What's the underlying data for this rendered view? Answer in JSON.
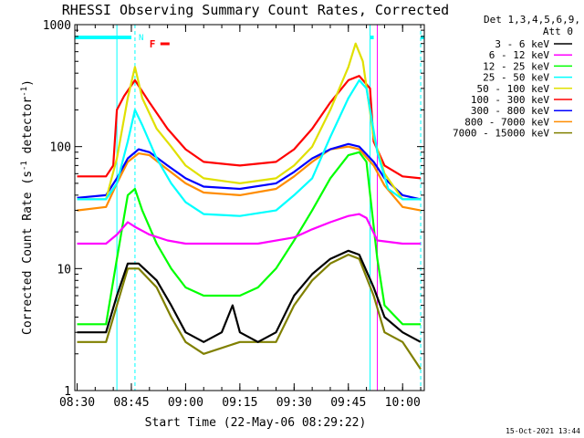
{
  "chart_data": {
    "type": "line",
    "title": "RHESSI Observing Summary Count Rates, Corrected",
    "xlabel": "Start Time (22-May-06 08:29:22)",
    "ylabel_main": "Corrected Count Rate (s",
    "ylabel_sup1": "-1",
    "ylabel_mid": " detector",
    "ylabel_sup2": "-1",
    "ylabel_end": ")",
    "yscale": "log",
    "ylim": [
      1,
      1000
    ],
    "xlim": [
      "08:29:22",
      "10:06"
    ],
    "x_ticks": [
      "08:30",
      "08:45",
      "09:00",
      "09:15",
      "09:30",
      "09:45",
      "10:00"
    ],
    "y_ticks": [
      {
        "value": 1,
        "label": "1"
      },
      {
        "value": 10,
        "label": "10"
      },
      {
        "value": 100,
        "label": "100"
      },
      {
        "value": 1000,
        "label": "1000"
      }
    ],
    "legend_title_1": "Det 1,3,4,5,6,9,",
    "legend_title_2": "Att 0",
    "timestamp": "15-Oct-2021 13:44",
    "flags": [
      {
        "label": "N",
        "color": "#00ffff",
        "start": "08:29:22",
        "end": "08:45",
        "marker": "08:45:30"
      },
      {
        "label": "F",
        "color": "#ff0000",
        "start": "08:50",
        "end": "08:50"
      }
    ],
    "vlines": [
      {
        "time": "08:41",
        "color": "#00ffff",
        "style": "solid"
      },
      {
        "time": "08:46",
        "color": "#00ffff",
        "style": "dashed"
      },
      {
        "time": "09:51",
        "color": "#00ffff",
        "style": "solid"
      },
      {
        "time": "09:53",
        "color": "#ff00ff",
        "style": "solid"
      },
      {
        "time": "10:05",
        "color": "#00ffff",
        "style": "dashed"
      }
    ],
    "series": [
      {
        "name": "3 - 6 keV",
        "color": "#000000",
        "points": [
          [
            "08:30",
            3
          ],
          [
            "08:38",
            3
          ],
          [
            "08:41",
            6
          ],
          [
            "08:44",
            11
          ],
          [
            "08:47",
            11
          ],
          [
            "08:52",
            8
          ],
          [
            "08:56",
            5
          ],
          [
            "09:00",
            3
          ],
          [
            "09:05",
            2.5
          ],
          [
            "09:10",
            3
          ],
          [
            "09:13",
            5
          ],
          [
            "09:15",
            3
          ],
          [
            "09:20",
            2.5
          ],
          [
            "09:25",
            3
          ],
          [
            "09:30",
            6
          ],
          [
            "09:35",
            9
          ],
          [
            "09:40",
            12
          ],
          [
            "09:45",
            14
          ],
          [
            "09:48",
            13
          ],
          [
            "09:52",
            7
          ],
          [
            "09:55",
            4
          ],
          [
            "10:00",
            3
          ],
          [
            "10:05",
            2.5
          ]
        ]
      },
      {
        "name": "6 - 12 keV",
        "color": "#ff00ff",
        "points": [
          [
            "08:30",
            16
          ],
          [
            "08:38",
            16
          ],
          [
            "08:41",
            19
          ],
          [
            "08:44",
            24
          ],
          [
            "08:46",
            22
          ],
          [
            "08:50",
            19
          ],
          [
            "08:55",
            17
          ],
          [
            "09:00",
            16
          ],
          [
            "09:10",
            16
          ],
          [
            "09:20",
            16
          ],
          [
            "09:30",
            18
          ],
          [
            "09:35",
            21
          ],
          [
            "09:40",
            24
          ],
          [
            "09:45",
            27
          ],
          [
            "09:48",
            28
          ],
          [
            "09:50",
            26
          ],
          [
            "09:53",
            17
          ],
          [
            "10:00",
            16
          ],
          [
            "10:05",
            16
          ]
        ]
      },
      {
        "name": "12 - 25 keV",
        "color": "#00ff00",
        "points": [
          [
            "08:30",
            3.5
          ],
          [
            "08:38",
            3.5
          ],
          [
            "08:41",
            12
          ],
          [
            "08:44",
            40
          ],
          [
            "08:46",
            45
          ],
          [
            "08:48",
            30
          ],
          [
            "08:52",
            16
          ],
          [
            "08:56",
            10
          ],
          [
            "09:00",
            7
          ],
          [
            "09:05",
            6
          ],
          [
            "09:15",
            6
          ],
          [
            "09:20",
            7
          ],
          [
            "09:25",
            10
          ],
          [
            "09:30",
            17
          ],
          [
            "09:35",
            30
          ],
          [
            "09:40",
            55
          ],
          [
            "09:45",
            85
          ],
          [
            "09:48",
            90
          ],
          [
            "09:50",
            75
          ],
          [
            "09:53",
            12
          ],
          [
            "09:55",
            5
          ],
          [
            "10:00",
            3.5
          ],
          [
            "10:05",
            3.5
          ]
        ]
      },
      {
        "name": "25 - 50 keV",
        "color": "#00ffff",
        "points": [
          [
            "08:30",
            37
          ],
          [
            "08:38",
            37
          ],
          [
            "08:41",
            50
          ],
          [
            "08:44",
            110
          ],
          [
            "08:46",
            200
          ],
          [
            "08:48",
            150
          ],
          [
            "08:52",
            80
          ],
          [
            "08:56",
            50
          ],
          [
            "09:00",
            35
          ],
          [
            "09:05",
            28
          ],
          [
            "09:15",
            27
          ],
          [
            "09:25",
            30
          ],
          [
            "09:30",
            40
          ],
          [
            "09:35",
            55
          ],
          [
            "09:40",
            120
          ],
          [
            "09:45",
            250
          ],
          [
            "09:48",
            350
          ],
          [
            "09:50",
            300
          ],
          [
            "09:53",
            90
          ],
          [
            "09:56",
            45
          ],
          [
            "10:00",
            37
          ],
          [
            "10:05",
            37
          ]
        ]
      },
      {
        "name": "50 - 100 keV",
        "color": "#e0e000",
        "points": [
          [
            "08:30",
            37
          ],
          [
            "08:38",
            37
          ],
          [
            "08:41",
            80
          ],
          [
            "08:44",
            250
          ],
          [
            "08:46",
            450
          ],
          [
            "08:48",
            250
          ],
          [
            "08:52",
            140
          ],
          [
            "08:56",
            100
          ],
          [
            "09:00",
            70
          ],
          [
            "09:05",
            55
          ],
          [
            "09:15",
            50
          ],
          [
            "09:25",
            55
          ],
          [
            "09:30",
            70
          ],
          [
            "09:35",
            100
          ],
          [
            "09:40",
            200
          ],
          [
            "09:45",
            450
          ],
          [
            "09:47",
            700
          ],
          [
            "09:49",
            500
          ],
          [
            "09:52",
            120
          ],
          [
            "09:55",
            60
          ],
          [
            "10:00",
            37
          ],
          [
            "10:05",
            37
          ]
        ]
      },
      {
        "name": "100 - 300 keV",
        "color": "#ff0000",
        "points": [
          [
            "08:30",
            57
          ],
          [
            "08:38",
            57
          ],
          [
            "08:40",
            70
          ],
          [
            "08:41",
            200
          ],
          [
            "08:43",
            260
          ],
          [
            "08:46",
            350
          ],
          [
            "08:50",
            230
          ],
          [
            "08:55",
            140
          ],
          [
            "09:00",
            95
          ],
          [
            "09:05",
            75
          ],
          [
            "09:15",
            70
          ],
          [
            "09:25",
            75
          ],
          [
            "09:30",
            95
          ],
          [
            "09:35",
            140
          ],
          [
            "09:40",
            230
          ],
          [
            "09:45",
            350
          ],
          [
            "09:48",
            380
          ],
          [
            "09:51",
            300
          ],
          [
            "09:52",
            110
          ],
          [
            "09:55",
            70
          ],
          [
            "10:00",
            57
          ],
          [
            "10:05",
            55
          ]
        ]
      },
      {
        "name": "300 - 800 keV",
        "color": "#0000ff",
        "points": [
          [
            "08:30",
            38
          ],
          [
            "08:38",
            40
          ],
          [
            "08:41",
            55
          ],
          [
            "08:44",
            80
          ],
          [
            "08:47",
            95
          ],
          [
            "08:50",
            90
          ],
          [
            "08:55",
            70
          ],
          [
            "09:00",
            55
          ],
          [
            "09:05",
            47
          ],
          [
            "09:15",
            45
          ],
          [
            "09:25",
            50
          ],
          [
            "09:30",
            62
          ],
          [
            "09:35",
            80
          ],
          [
            "09:40",
            95
          ],
          [
            "09:45",
            105
          ],
          [
            "09:48",
            100
          ],
          [
            "09:52",
            75
          ],
          [
            "09:55",
            55
          ],
          [
            "10:00",
            40
          ],
          [
            "10:05",
            37
          ]
        ]
      },
      {
        "name": "800 - 7000 keV",
        "color": "#ff8c00",
        "points": [
          [
            "08:30",
            30
          ],
          [
            "08:38",
            32
          ],
          [
            "08:41",
            50
          ],
          [
            "08:44",
            75
          ],
          [
            "08:47",
            88
          ],
          [
            "08:50",
            85
          ],
          [
            "08:55",
            65
          ],
          [
            "09:00",
            50
          ],
          [
            "09:05",
            42
          ],
          [
            "09:15",
            40
          ],
          [
            "09:25",
            45
          ],
          [
            "09:30",
            57
          ],
          [
            "09:35",
            75
          ],
          [
            "09:40",
            95
          ],
          [
            "09:45",
            100
          ],
          [
            "09:48",
            95
          ],
          [
            "09:52",
            70
          ],
          [
            "09:55",
            48
          ],
          [
            "10:00",
            32
          ],
          [
            "10:05",
            30
          ]
        ]
      },
      {
        "name": "7000 - 15000 keV",
        "color": "#808000",
        "points": [
          [
            "08:30",
            2.5
          ],
          [
            "08:38",
            2.5
          ],
          [
            "08:41",
            5
          ],
          [
            "08:44",
            10
          ],
          [
            "08:47",
            10
          ],
          [
            "08:52",
            7
          ],
          [
            "08:56",
            4
          ],
          [
            "09:00",
            2.5
          ],
          [
            "09:05",
            2
          ],
          [
            "09:15",
            2.5
          ],
          [
            "09:25",
            2.5
          ],
          [
            "09:30",
            5
          ],
          [
            "09:35",
            8
          ],
          [
            "09:40",
            11
          ],
          [
            "09:45",
            13
          ],
          [
            "09:48",
            12
          ],
          [
            "09:52",
            6
          ],
          [
            "09:55",
            3
          ],
          [
            "10:00",
            2.5
          ],
          [
            "10:05",
            1.5
          ]
        ]
      }
    ]
  }
}
